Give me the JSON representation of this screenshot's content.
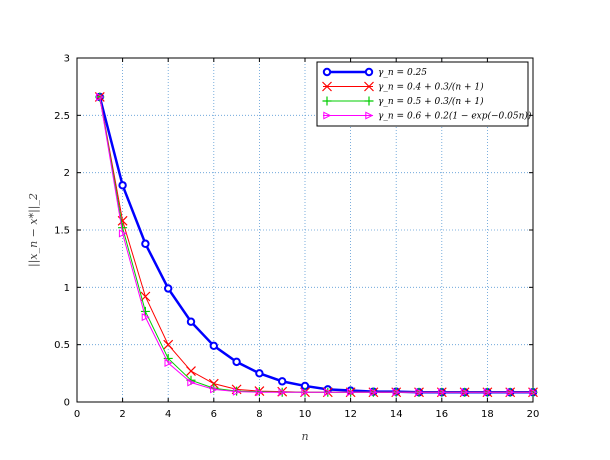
{
  "chart_data": {
    "type": "line",
    "xlabel": "n",
    "ylabel": "||x_n − x*||_2",
    "xlim": [
      0,
      20
    ],
    "ylim": [
      0,
      3
    ],
    "xticks": [
      0,
      2,
      4,
      6,
      8,
      10,
      12,
      14,
      16,
      18,
      20
    ],
    "yticks": [
      0,
      0.5,
      1,
      1.5,
      2,
      2.5,
      3
    ],
    "xtick_labels": [
      "0",
      "2",
      "4",
      "6",
      "8",
      "10",
      "12",
      "14",
      "16",
      "18",
      "20"
    ],
    "ytick_labels": [
      "0",
      "0.5",
      "1",
      "1.5",
      "2",
      "2.5",
      "3"
    ],
    "grid": true,
    "legend_position": "top-right",
    "x": [
      1,
      2,
      3,
      4,
      5,
      6,
      7,
      8,
      9,
      10,
      11,
      12,
      13,
      14,
      15,
      16,
      17,
      18,
      19,
      20
    ],
    "series": [
      {
        "name": "γ_n = 0.25",
        "color": "#0000ff",
        "marker": "circle",
        "line_width": 2.5,
        "values": [
          2.66,
          1.89,
          1.38,
          0.99,
          0.7,
          0.49,
          0.35,
          0.25,
          0.18,
          0.14,
          0.11,
          0.1,
          0.09,
          0.09,
          0.085,
          0.085,
          0.085,
          0.085,
          0.085,
          0.085
        ]
      },
      {
        "name": "γ_n = 0.4 + 0.3/(n + 1)",
        "color": "#ff0000",
        "marker": "x",
        "line_width": 1,
        "values": [
          2.66,
          1.58,
          0.92,
          0.5,
          0.27,
          0.16,
          0.11,
          0.095,
          0.09,
          0.085,
          0.085,
          0.085,
          0.085,
          0.085,
          0.085,
          0.085,
          0.085,
          0.085,
          0.085,
          0.085
        ]
      },
      {
        "name": "γ_n = 0.5 + 0.3/(n + 1)",
        "color": "#00cc00",
        "marker": "plus",
        "line_width": 1,
        "values": [
          2.66,
          1.52,
          0.79,
          0.38,
          0.19,
          0.12,
          0.095,
          0.09,
          0.085,
          0.085,
          0.085,
          0.085,
          0.085,
          0.085,
          0.085,
          0.085,
          0.085,
          0.085,
          0.085,
          0.085
        ]
      },
      {
        "name": "γ_n = 0.6 + 0.2(1 − exp(−0.05n))",
        "color": "#ff00ff",
        "marker": "triangle-right",
        "line_width": 1,
        "values": [
          2.66,
          1.47,
          0.74,
          0.34,
          0.17,
          0.11,
          0.09,
          0.085,
          0.085,
          0.085,
          0.085,
          0.085,
          0.085,
          0.085,
          0.085,
          0.085,
          0.085,
          0.085,
          0.085,
          0.085
        ]
      }
    ]
  }
}
